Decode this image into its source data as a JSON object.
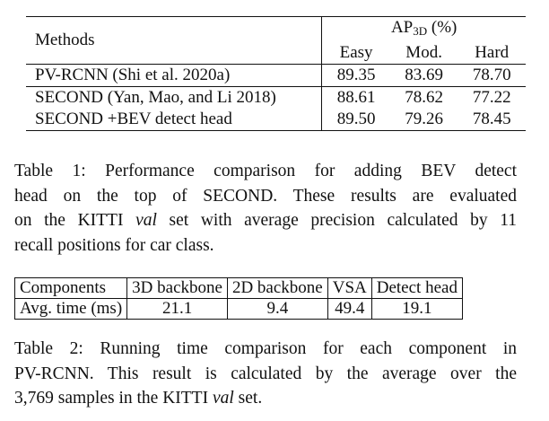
{
  "table1": {
    "header": {
      "methods": "Methods",
      "ap_main": "AP",
      "ap_sub": "3D",
      "ap_unit": " (%)",
      "easy": "Easy",
      "mod": "Mod.",
      "hard": "Hard"
    },
    "rows": [
      {
        "method": "PV-RCNN (Shi et al. 2020a)",
        "easy": "89.35",
        "mod": "83.69",
        "hard": "78.70"
      },
      {
        "method": "SECOND (Yan, Mao, and Li 2018)",
        "easy": "88.61",
        "mod": "78.62",
        "hard": "77.22"
      },
      {
        "method": "SECOND +BEV detect head",
        "easy": "89.50",
        "mod": "79.26",
        "hard": "78.45"
      }
    ]
  },
  "caption1": {
    "line1": "Table 1: Performance comparison for adding BEV detect",
    "line2": "head on the top of SECOND. These results are evaluated",
    "line3_a": "on the KITTI ",
    "line3_it": "val",
    "line3_b": " set with average precision calculated by 11",
    "line4": "recall positions for car class."
  },
  "table2": {
    "headers": [
      "Components",
      "3D backbone",
      "2D backbone",
      "VSA",
      "Detect head"
    ],
    "values": [
      "Avg. time (ms)",
      "21.1",
      "9.4",
      "49.4",
      "19.1"
    ]
  },
  "caption2": {
    "line1": "Table 2: Running time comparison for each component in",
    "line2": "PV-RCNN. This result is calculated by the average over the",
    "line3_a": "3,769 samples in the KITTI ",
    "line3_it": "val",
    "line3_b": " set."
  }
}
